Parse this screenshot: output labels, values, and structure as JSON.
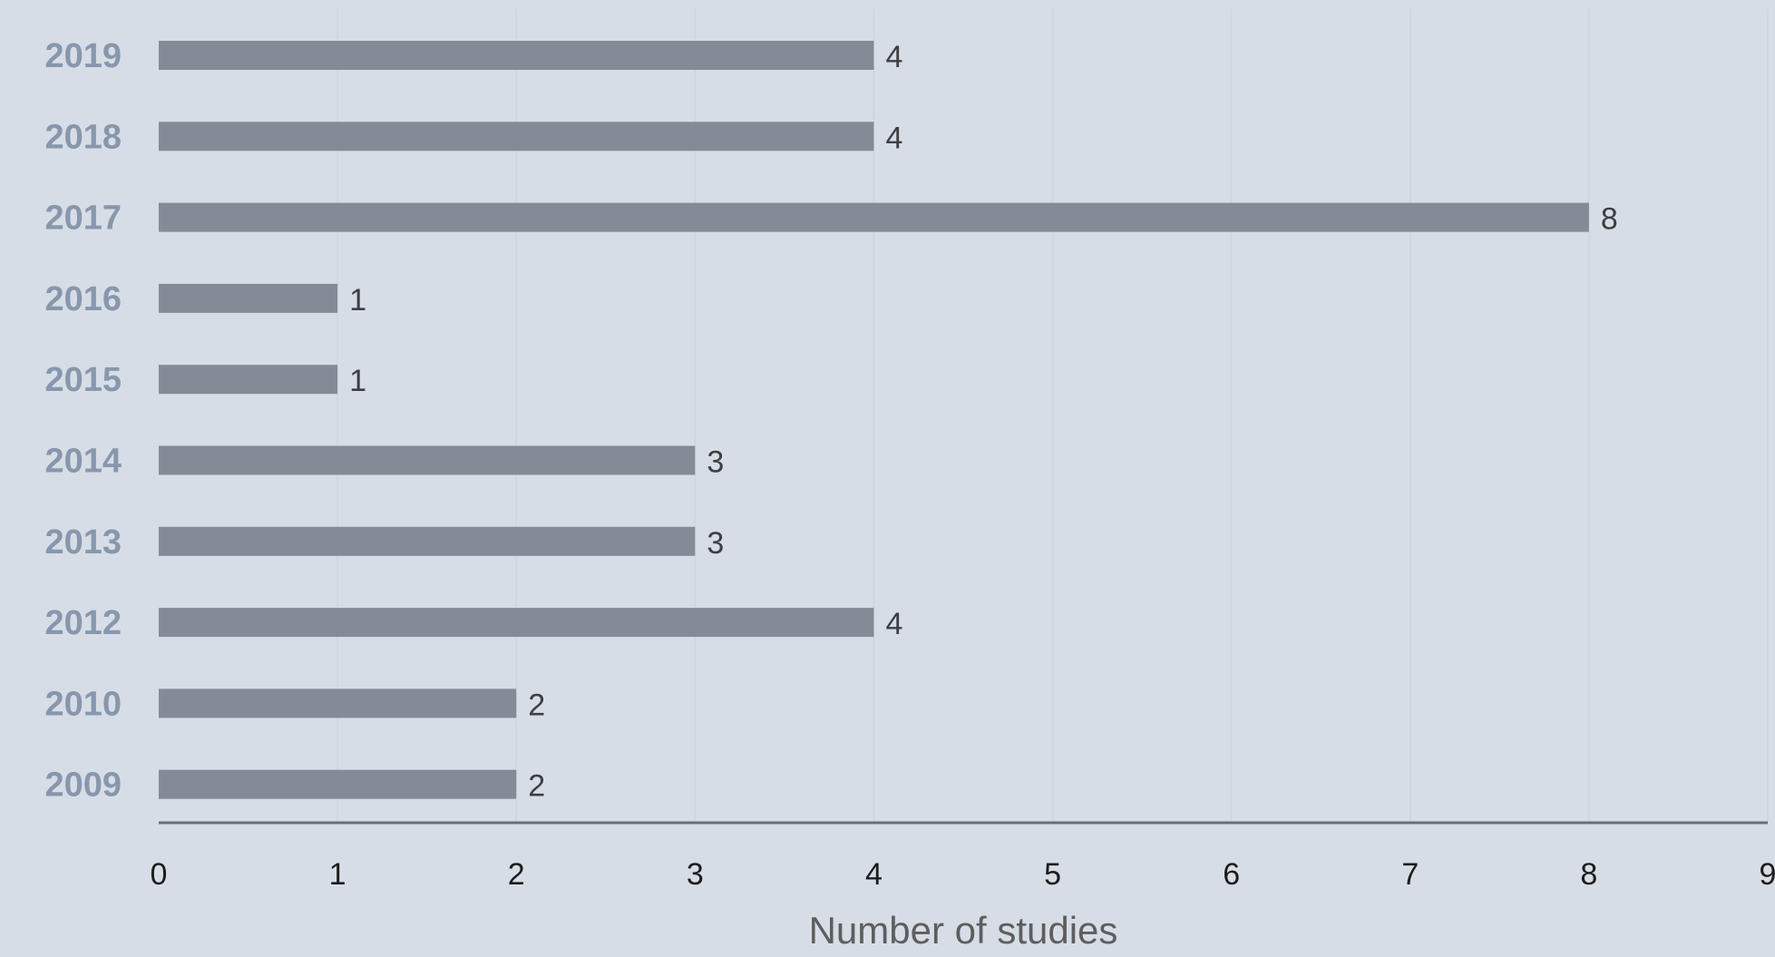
{
  "chart_data": {
    "type": "bar",
    "orientation": "horizontal",
    "categories": [
      "2019",
      "2018",
      "2017",
      "2016",
      "2015",
      "2014",
      "2013",
      "2012",
      "2010",
      "2009"
    ],
    "values": [
      4,
      4,
      8,
      1,
      1,
      3,
      3,
      4,
      2,
      2
    ],
    "xlabel": "Number of studies",
    "ylabel": "",
    "xlim": [
      0,
      9
    ],
    "x_ticks": [
      "0",
      "1",
      "2",
      "3",
      "4",
      "5",
      "6",
      "7",
      "8",
      "9"
    ],
    "data_labels": [
      "4",
      "4",
      "8",
      "1",
      "1",
      "3",
      "3",
      "4",
      "2",
      "2"
    ],
    "grid": "vertical",
    "legend": "none",
    "colors": {
      "background": "#d7dde6",
      "bar": "#848a96",
      "axis": "#6e6e72",
      "gridline": "#cfd5de",
      "category_text": "#8797ad",
      "value_text": "#3e3e42",
      "tick_text": "#1c1c1c",
      "axis_title_text": "#5e5e5e"
    }
  }
}
